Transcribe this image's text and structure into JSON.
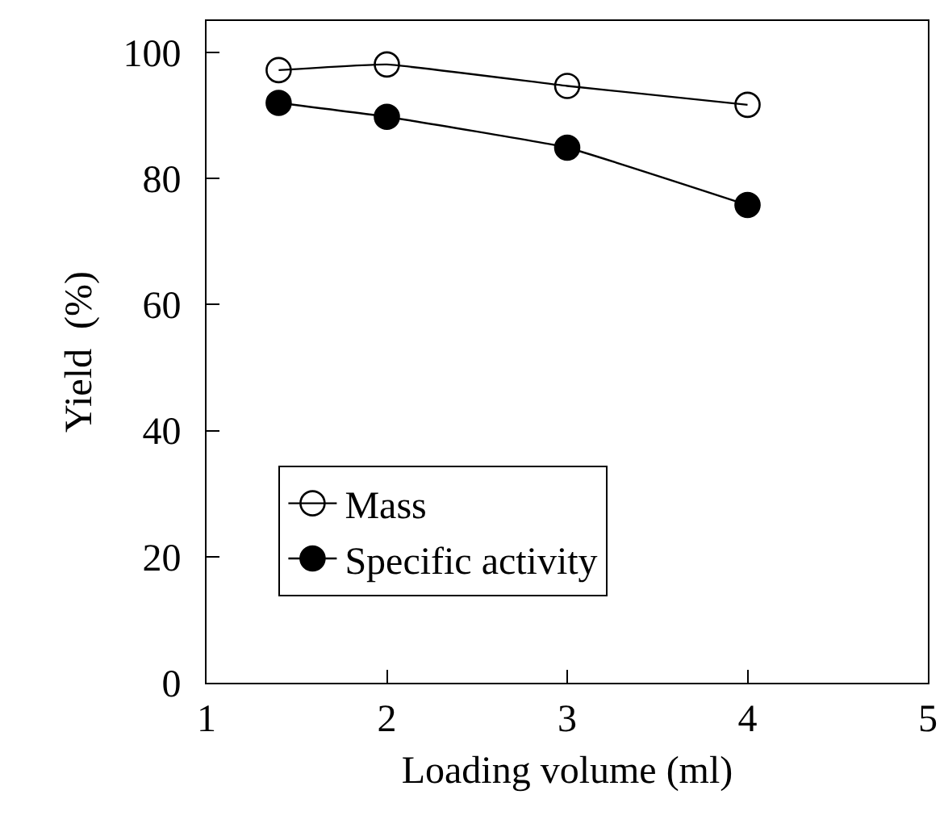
{
  "chart_data": {
    "type": "line",
    "xlabel": "Loading volume (ml)",
    "ylabel": "Yield  (%)",
    "x": [
      1.4,
      2,
      3,
      4
    ],
    "series": [
      {
        "name": "Mass",
        "color": "#000000",
        "marker": "circle-open",
        "values": [
          97.2,
          98.1,
          94.7,
          91.7
        ]
      },
      {
        "name": "Specific activity",
        "color": "#000000",
        "marker": "circle",
        "values": [
          92.0,
          89.8,
          84.9,
          75.8
        ]
      }
    ],
    "xlim": [
      1,
      5
    ],
    "xticks": [
      1,
      2,
      3,
      4,
      5
    ],
    "ylim": [
      0,
      105
    ],
    "yticks": [
      0,
      20,
      40,
      60,
      80,
      100
    ],
    "grid": false,
    "legend": "bottom left",
    "line_style": "solid"
  }
}
